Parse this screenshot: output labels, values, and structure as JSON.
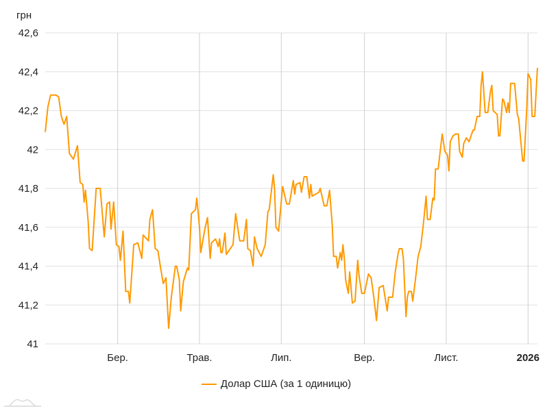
{
  "chart_data": {
    "type": "line",
    "title": "",
    "ylabel": "грн",
    "xlabel": "",
    "xlim": [
      "2025-01-06",
      "2026-01-08"
    ],
    "ylim": [
      41,
      42.6
    ],
    "grid": true,
    "legend_placement": "bottom",
    "y_ticks": [
      {
        "value": 41,
        "label": "41"
      },
      {
        "value": 41.2,
        "label": "41,2"
      },
      {
        "value": 41.4,
        "label": "41,4"
      },
      {
        "value": 41.6,
        "label": "41,6"
      },
      {
        "value": 41.8,
        "label": "41,8"
      },
      {
        "value": 42,
        "label": "42"
      },
      {
        "value": 42.2,
        "label": "42,2"
      },
      {
        "value": 42.4,
        "label": "42,4"
      },
      {
        "value": 42.6,
        "label": "42,6"
      }
    ],
    "x_ticks": [
      {
        "date": "2025-03-01",
        "label": "Бер.",
        "bold": false
      },
      {
        "date": "2025-05-01",
        "label": "Трав.",
        "bold": false
      },
      {
        "date": "2025-07-01",
        "label": "Лип.",
        "bold": false
      },
      {
        "date": "2025-09-01",
        "label": "Вер.",
        "bold": false
      },
      {
        "date": "2025-11-01",
        "label": "Лист.",
        "bold": false
      },
      {
        "date": "2026-01-01",
        "label": "2026",
        "bold": true
      }
    ],
    "series": [
      {
        "name": "Долар США (за 1 одиницю)",
        "color": "#ff9900",
        "points": [
          [
            "2025-01-06",
            42.09
          ],
          [
            "2025-01-08",
            42.22
          ],
          [
            "2025-01-10",
            42.28
          ],
          [
            "2025-01-14",
            42.28
          ],
          [
            "2025-01-16",
            42.27
          ],
          [
            "2025-01-18",
            42.17
          ],
          [
            "2025-01-20",
            42.13
          ],
          [
            "2025-01-22",
            42.17
          ],
          [
            "2025-01-24",
            41.98
          ],
          [
            "2025-01-27",
            41.95
          ],
          [
            "2025-01-30",
            42.02
          ],
          [
            "2025-02-01",
            41.83
          ],
          [
            "2025-02-03",
            41.82
          ],
          [
            "2025-02-04",
            41.73
          ],
          [
            "2025-02-05",
            41.79
          ],
          [
            "2025-02-07",
            41.63
          ],
          [
            "2025-02-08",
            41.49
          ],
          [
            "2025-02-10",
            41.48
          ],
          [
            "2025-02-13",
            41.8
          ],
          [
            "2025-02-16",
            41.8
          ],
          [
            "2025-02-19",
            41.55
          ],
          [
            "2025-02-21",
            41.72
          ],
          [
            "2025-02-23",
            41.73
          ],
          [
            "2025-02-24",
            41.59
          ],
          [
            "2025-02-26",
            41.73
          ],
          [
            "2025-02-28",
            41.51
          ],
          [
            "2025-03-02",
            41.5
          ],
          [
            "2025-03-03",
            41.43
          ],
          [
            "2025-03-05",
            41.58
          ],
          [
            "2025-03-07",
            41.27
          ],
          [
            "2025-03-09",
            41.27
          ],
          [
            "2025-03-10",
            41.21
          ],
          [
            "2025-03-13",
            41.51
          ],
          [
            "2025-03-16",
            41.52
          ],
          [
            "2025-03-19",
            41.44
          ],
          [
            "2025-03-20",
            41.56
          ],
          [
            "2025-03-24",
            41.53
          ],
          [
            "2025-03-25",
            41.64
          ],
          [
            "2025-03-27",
            41.69
          ],
          [
            "2025-03-29",
            41.49
          ],
          [
            "2025-03-31",
            41.48
          ],
          [
            "2025-04-02",
            41.39
          ],
          [
            "2025-04-04",
            41.31
          ],
          [
            "2025-04-06",
            41.34
          ],
          [
            "2025-04-08",
            41.08
          ],
          [
            "2025-04-10",
            41.24
          ],
          [
            "2025-04-13",
            41.4
          ],
          [
            "2025-04-14",
            41.4
          ],
          [
            "2025-04-16",
            41.33
          ],
          [
            "2025-04-17",
            41.17
          ],
          [
            "2025-04-19",
            41.32
          ],
          [
            "2025-04-22",
            41.39
          ],
          [
            "2025-04-23",
            41.38
          ],
          [
            "2025-04-25",
            41.67
          ],
          [
            "2025-04-28",
            41.69
          ],
          [
            "2025-04-29",
            41.75
          ],
          [
            "2025-05-01",
            41.6
          ],
          [
            "2025-05-02",
            41.47
          ],
          [
            "2025-05-05",
            41.59
          ],
          [
            "2025-05-07",
            41.65
          ],
          [
            "2025-05-09",
            41.44
          ],
          [
            "2025-05-10",
            41.52
          ],
          [
            "2025-05-13",
            41.54
          ],
          [
            "2025-05-15",
            41.5
          ],
          [
            "2025-05-16",
            41.54
          ],
          [
            "2025-05-17",
            41.47
          ],
          [
            "2025-05-18",
            41.47
          ],
          [
            "2025-05-20",
            41.57
          ],
          [
            "2025-05-21",
            41.46
          ],
          [
            "2025-05-25",
            41.5
          ],
          [
            "2025-05-26",
            41.51
          ],
          [
            "2025-05-28",
            41.67
          ],
          [
            "2025-05-31",
            41.53
          ],
          [
            "2025-06-03",
            41.53
          ],
          [
            "2025-06-05",
            41.64
          ],
          [
            "2025-06-06",
            41.49
          ],
          [
            "2025-06-08",
            41.48
          ],
          [
            "2025-06-10",
            41.4
          ],
          [
            "2025-06-11",
            41.55
          ],
          [
            "2025-06-13",
            41.49
          ],
          [
            "2025-06-16",
            41.45
          ],
          [
            "2025-06-19",
            41.51
          ],
          [
            "2025-06-21",
            41.68
          ],
          [
            "2025-06-22",
            41.69
          ],
          [
            "2025-06-25",
            41.87
          ],
          [
            "2025-06-26",
            41.8
          ],
          [
            "2025-06-27",
            41.6
          ],
          [
            "2025-06-29",
            41.58
          ],
          [
            "2025-07-02",
            41.81
          ],
          [
            "2025-07-05",
            41.72
          ],
          [
            "2025-07-07",
            41.72
          ],
          [
            "2025-07-10",
            41.84
          ],
          [
            "2025-07-11",
            41.77
          ],
          [
            "2025-07-12",
            41.82
          ],
          [
            "2025-07-15",
            41.83
          ],
          [
            "2025-07-16",
            41.78
          ],
          [
            "2025-07-18",
            41.86
          ],
          [
            "2025-07-20",
            41.86
          ],
          [
            "2025-07-22",
            41.75
          ],
          [
            "2025-07-23",
            41.82
          ],
          [
            "2025-07-24",
            41.76
          ],
          [
            "2025-07-29",
            41.78
          ],
          [
            "2025-07-30",
            41.8
          ],
          [
            "2025-08-02",
            41.71
          ],
          [
            "2025-08-04",
            41.71
          ],
          [
            "2025-08-06",
            41.79
          ],
          [
            "2025-08-08",
            41.61
          ],
          [
            "2025-08-09",
            41.45
          ],
          [
            "2025-08-11",
            41.45
          ],
          [
            "2025-08-12",
            41.39
          ],
          [
            "2025-08-14",
            41.47
          ],
          [
            "2025-08-15",
            41.43
          ],
          [
            "2025-08-16",
            41.51
          ],
          [
            "2025-08-17",
            41.44
          ],
          [
            "2025-08-18",
            41.33
          ],
          [
            "2025-08-20",
            41.26
          ],
          [
            "2025-08-21",
            41.37
          ],
          [
            "2025-08-23",
            41.21
          ],
          [
            "2025-08-25",
            41.22
          ],
          [
            "2025-08-27",
            41.43
          ],
          [
            "2025-08-28",
            41.35
          ],
          [
            "2025-08-30",
            41.26
          ],
          [
            "2025-09-01",
            41.26
          ],
          [
            "2025-09-04",
            41.36
          ],
          [
            "2025-09-06",
            41.34
          ],
          [
            "2025-09-08",
            41.24
          ],
          [
            "2025-09-10",
            41.12
          ],
          [
            "2025-09-12",
            41.29
          ],
          [
            "2025-09-15",
            41.3
          ],
          [
            "2025-09-18",
            41.17
          ],
          [
            "2025-09-19",
            41.24
          ],
          [
            "2025-09-22",
            41.24
          ],
          [
            "2025-09-24",
            41.37
          ],
          [
            "2025-09-26",
            41.46
          ],
          [
            "2025-09-27",
            41.49
          ],
          [
            "2025-09-29",
            41.49
          ],
          [
            "2025-09-30",
            41.44
          ],
          [
            "2025-10-02",
            41.14
          ],
          [
            "2025-10-03",
            41.24
          ],
          [
            "2025-10-04",
            41.27
          ],
          [
            "2025-10-06",
            41.27
          ],
          [
            "2025-10-07",
            41.22
          ],
          [
            "2025-10-09",
            41.33
          ],
          [
            "2025-10-11",
            41.45
          ],
          [
            "2025-10-13",
            41.5
          ],
          [
            "2025-10-15",
            41.62
          ],
          [
            "2025-10-17",
            41.76
          ],
          [
            "2025-10-18",
            41.64
          ],
          [
            "2025-10-20",
            41.64
          ],
          [
            "2025-10-22",
            41.75
          ],
          [
            "2025-10-23",
            41.74
          ],
          [
            "2025-10-24",
            41.9
          ],
          [
            "2025-10-26",
            41.9
          ],
          [
            "2025-10-28",
            42.02
          ],
          [
            "2025-10-29",
            42.08
          ],
          [
            "2025-10-31",
            41.99
          ],
          [
            "2025-11-02",
            41.97
          ],
          [
            "2025-11-03",
            41.89
          ],
          [
            "2025-11-04",
            42.04
          ],
          [
            "2025-11-06",
            42.07
          ],
          [
            "2025-11-08",
            42.08
          ],
          [
            "2025-11-10",
            42.08
          ],
          [
            "2025-11-11",
            41.99
          ],
          [
            "2025-11-13",
            41.96
          ],
          [
            "2025-11-14",
            42.03
          ],
          [
            "2025-11-16",
            42.06
          ],
          [
            "2025-11-18",
            42.04
          ],
          [
            "2025-11-20",
            42.08
          ],
          [
            "2025-11-21",
            42.1
          ],
          [
            "2025-11-22",
            42.1
          ],
          [
            "2025-11-24",
            42.17
          ],
          [
            "2025-11-26",
            42.17
          ],
          [
            "2025-11-27",
            42.33
          ],
          [
            "2025-11-28",
            42.4
          ],
          [
            "2025-11-29",
            42.3
          ],
          [
            "2025-11-30",
            42.19
          ],
          [
            "2025-12-02",
            42.19
          ],
          [
            "2025-12-04",
            42.3
          ],
          [
            "2025-12-05",
            42.33
          ],
          [
            "2025-12-06",
            42.2
          ],
          [
            "2025-12-09",
            42.18
          ],
          [
            "2025-12-10",
            42.07
          ],
          [
            "2025-12-11",
            42.07
          ],
          [
            "2025-12-13",
            42.26
          ],
          [
            "2025-12-14",
            42.25
          ],
          [
            "2025-12-16",
            42.19
          ],
          [
            "2025-12-17",
            42.24
          ],
          [
            "2025-12-18",
            42.19
          ],
          [
            "2025-12-19",
            42.34
          ],
          [
            "2025-12-22",
            42.34
          ],
          [
            "2025-12-24",
            42.18
          ],
          [
            "2025-12-25",
            42.16
          ],
          [
            "2025-12-28",
            41.94
          ],
          [
            "2025-12-29",
            41.94
          ],
          [
            "2025-12-31",
            42.2
          ],
          [
            "2026-01-01",
            42.39
          ],
          [
            "2026-01-03",
            42.36
          ],
          [
            "2026-01-04",
            42.17
          ],
          [
            "2026-01-06",
            42.17
          ],
          [
            "2026-01-08",
            42.42
          ]
        ]
      }
    ]
  },
  "colors": {
    "series": "#ff9900",
    "grid": "#e0e0e0",
    "vgrid": "#d0d0d0"
  },
  "icons": {
    "logo": "mountain-logo-icon"
  }
}
